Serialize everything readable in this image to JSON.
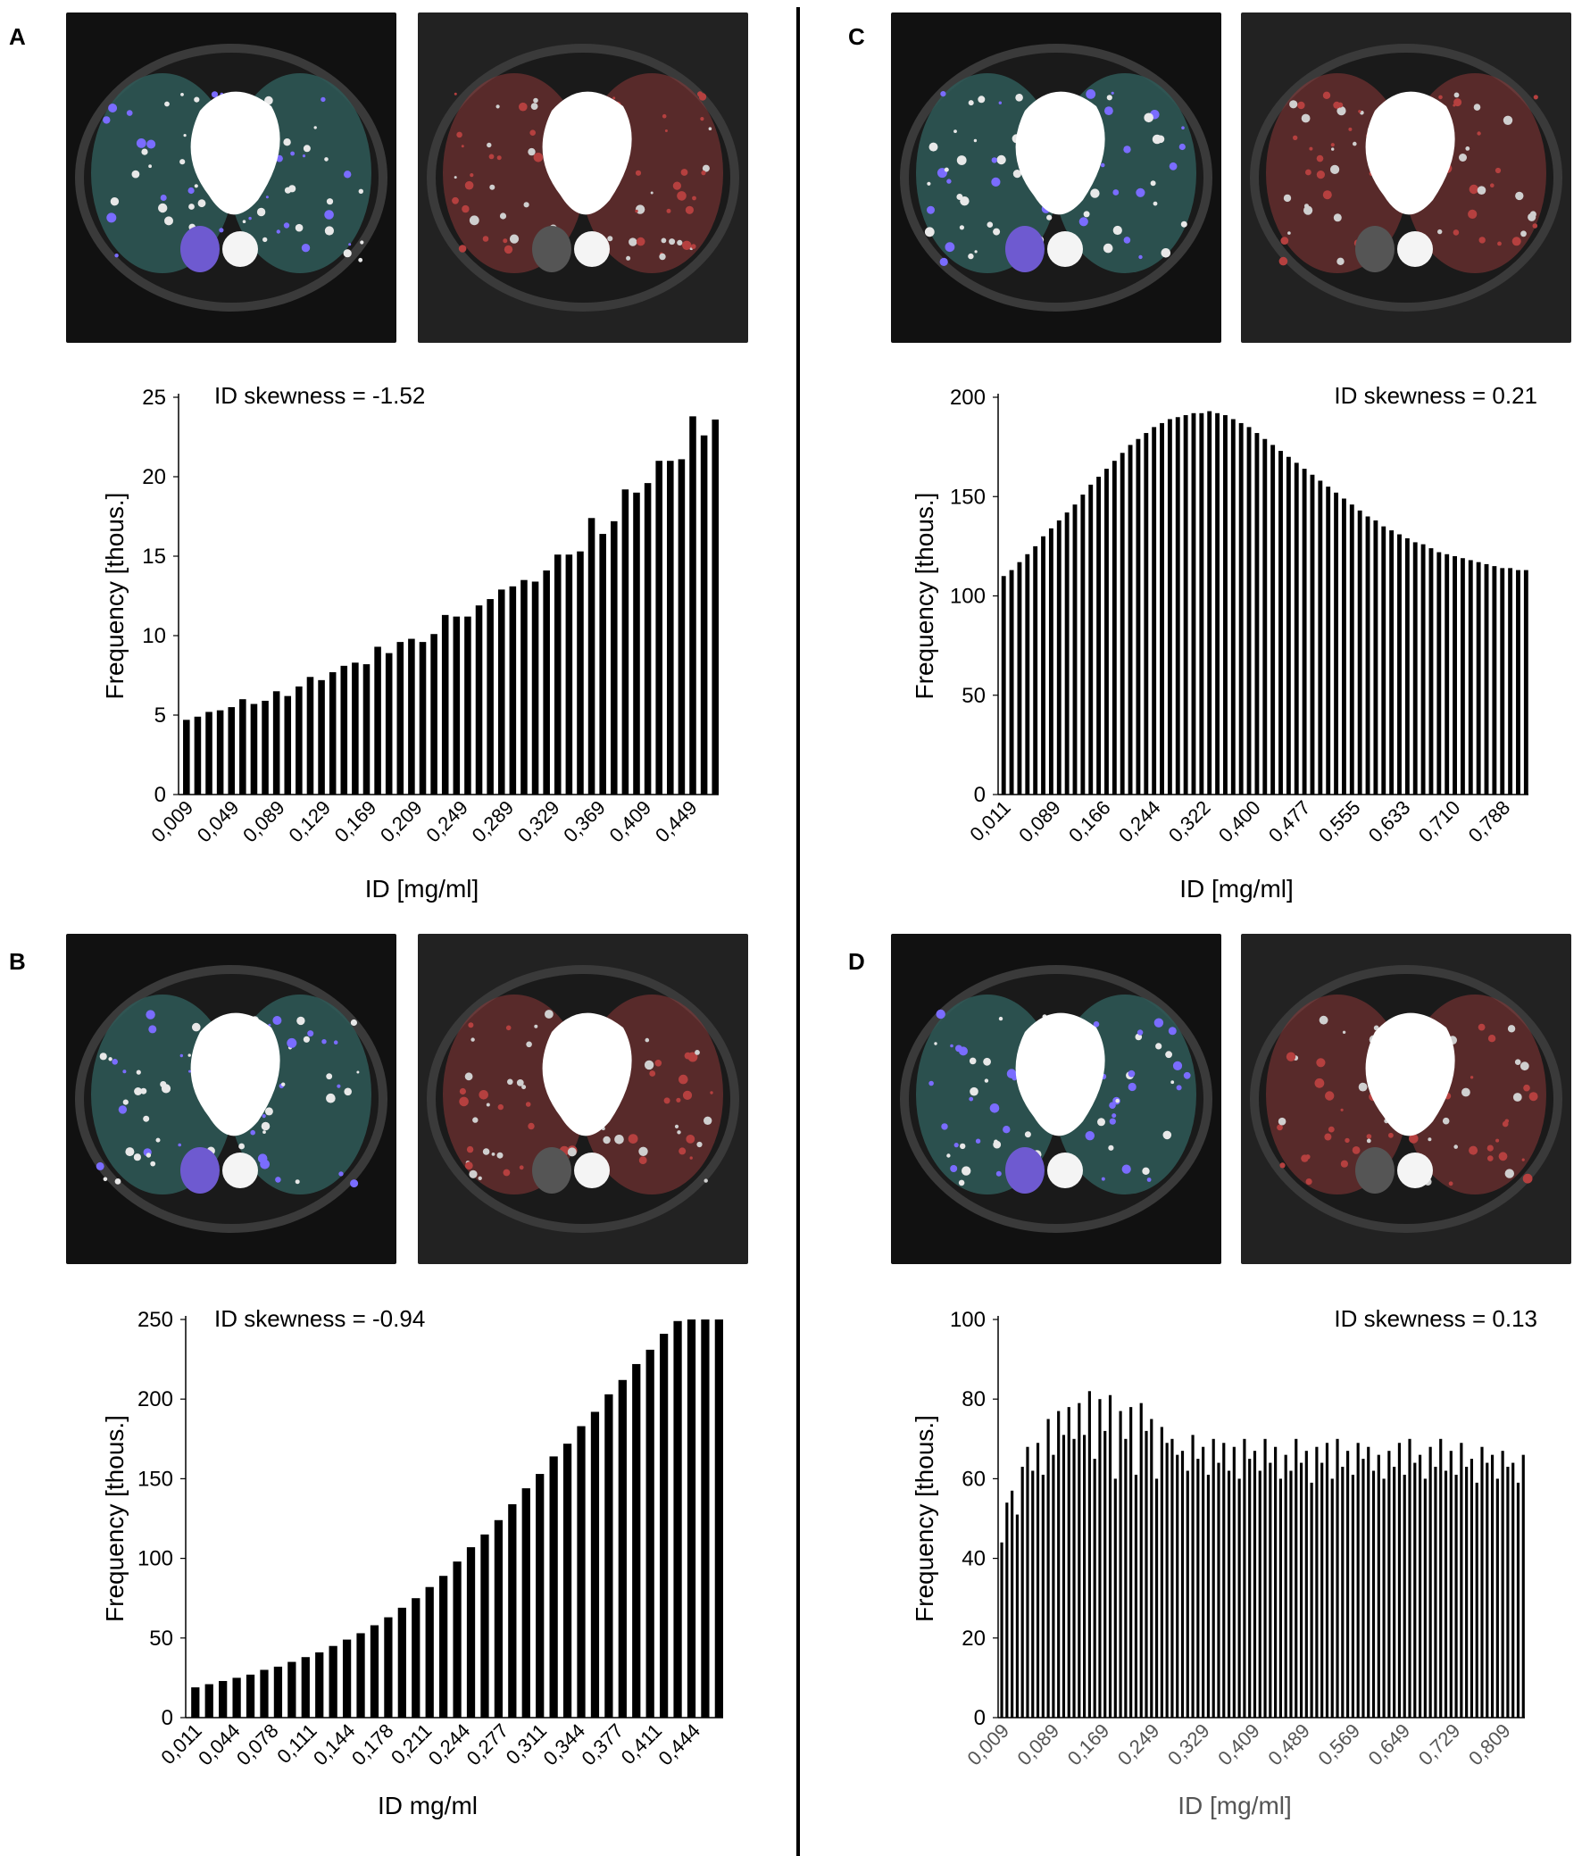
{
  "figure": {
    "panel_labels": [
      "A",
      "B",
      "C",
      "D"
    ],
    "ct_images": [
      {
        "panel": "A",
        "view": "iodine density overlay",
        "style": "teal"
      },
      {
        "panel": "A",
        "view": "perfusion defect map",
        "style": "red"
      },
      {
        "panel": "B",
        "view": "iodine density overlay",
        "style": "teal"
      },
      {
        "panel": "B",
        "view": "perfusion defect map",
        "style": "red"
      },
      {
        "panel": "C",
        "view": "iodine density overlay",
        "style": "teal"
      },
      {
        "panel": "C",
        "view": "perfusion defect map",
        "style": "red"
      },
      {
        "panel": "D",
        "view": "iodine density overlay",
        "style": "teal"
      },
      {
        "panel": "D",
        "view": "perfusion defect map",
        "style": "red"
      }
    ]
  },
  "chart_data": [
    {
      "panel": "A",
      "type": "bar",
      "annotation": "ID skewness = -1.52",
      "ylabel": "Frequency [thous.]",
      "xlabel": "ID [mg/ml]",
      "ylim": [
        0,
        25
      ],
      "yticks": [
        "0",
        "5",
        "10",
        "15",
        "20",
        "25"
      ],
      "xticks": [
        "0,009",
        "0,049",
        "0,089",
        "0,129",
        "0,169",
        "0,209",
        "0,249",
        "0,289",
        "0,329",
        "0,369",
        "0,409",
        "0,449"
      ],
      "values": [
        4.7,
        4.9,
        5.2,
        5.3,
        5.5,
        6.0,
        5.7,
        5.9,
        6.5,
        6.2,
        6.8,
        7.4,
        7.2,
        7.7,
        8.1,
        8.3,
        8.2,
        9.3,
        8.9,
        9.6,
        9.8,
        9.6,
        10.1,
        11.3,
        11.2,
        11.2,
        11.9,
        12.3,
        12.9,
        13.1,
        13.5,
        13.4,
        14.1,
        15.1,
        15.1,
        15.3,
        17.4,
        16.4,
        17.2,
        19.2,
        19.0,
        19.6,
        21.0,
        21.0,
        21.1,
        23.8,
        22.6,
        23.6
      ]
    },
    {
      "panel": "B",
      "type": "bar",
      "annotation": "ID skewness = -0.94",
      "ylabel": "Frequency [thous.]",
      "xlabel": "ID mg/ml",
      "ylim": [
        0,
        250
      ],
      "yticks": [
        "0",
        "50",
        "100",
        "150",
        "200",
        "250"
      ],
      "xticks": [
        "0,011",
        "0,044",
        "0,078",
        "0,111",
        "0,144",
        "0,178",
        "0,211",
        "0,244",
        "0,277",
        "0,311",
        "0,344",
        "0,377",
        "0,411",
        "0,444"
      ],
      "values": [
        19,
        21,
        23,
        25,
        27,
        30,
        32,
        35,
        38,
        41,
        45,
        49,
        53,
        58,
        63,
        69,
        75,
        82,
        89,
        98,
        107,
        115,
        124,
        134,
        144,
        153,
        164,
        172,
        183,
        192,
        203,
        212,
        222,
        231,
        241,
        249,
        250,
        250,
        250
      ]
    },
    {
      "panel": "C",
      "type": "bar",
      "annotation": "ID skewness = 0.21",
      "ylabel": "Frequency [thous.]",
      "xlabel": "ID [mg/ml]",
      "ylim": [
        0,
        200
      ],
      "yticks": [
        "0",
        "50",
        "100",
        "150",
        "200"
      ],
      "xticks": [
        "0,011",
        "0,089",
        "0,166",
        "0,244",
        "0,322",
        "0,400",
        "0,477",
        "0,555",
        "0,633",
        "0,710",
        "0,788"
      ],
      "values": [
        110,
        113,
        117,
        121,
        125,
        130,
        134,
        138,
        142,
        146,
        151,
        156,
        160,
        164,
        168,
        172,
        176,
        179,
        182,
        185,
        187,
        189,
        190,
        191,
        192,
        192,
        193,
        192,
        191,
        189,
        187,
        185,
        182,
        179,
        176,
        173,
        170,
        167,
        164,
        161,
        158,
        155,
        152,
        149,
        146,
        143,
        140,
        138,
        135,
        133,
        131,
        129,
        127,
        126,
        124,
        122,
        121,
        120,
        119,
        118,
        117,
        116,
        115,
        114,
        114,
        113,
        113
      ]
    },
    {
      "panel": "D",
      "type": "bar",
      "annotation": "ID skewness = 0.13",
      "ylabel": "Frequency [thous.]",
      "xlabel": "ID [mg/ml]",
      "ylim": [
        0,
        100
      ],
      "yticks": [
        "0",
        "20",
        "40",
        "60",
        "80",
        "100"
      ],
      "xticks": [
        "0,009",
        "0,089",
        "0,169",
        "0,249",
        "0,329",
        "0,409",
        "0,489",
        "0,569",
        "0,649",
        "0,729",
        "0,809"
      ],
      "values": [
        44,
        54,
        57,
        51,
        63,
        68,
        62,
        69,
        61,
        75,
        66,
        77,
        71,
        78,
        70,
        79,
        71,
        82,
        65,
        80,
        72,
        81,
        60,
        77,
        70,
        78,
        61,
        79,
        72,
        75,
        60,
        73,
        69,
        70,
        66,
        67,
        62,
        71,
        65,
        68,
        61,
        70,
        64,
        69,
        62,
        68,
        60,
        70,
        65,
        67,
        62,
        70,
        64,
        68,
        60,
        66,
        62,
        70,
        64,
        67,
        59,
        68,
        64,
        69,
        60,
        70,
        63,
        67,
        61,
        69,
        65,
        68,
        62,
        66,
        60,
        67,
        63,
        69,
        61,
        70,
        64,
        66,
        60,
        68,
        63,
        70,
        62,
        67,
        61,
        69,
        63,
        65,
        59,
        68,
        64,
        66,
        60,
        67,
        63,
        64,
        59,
        66
      ]
    }
  ]
}
